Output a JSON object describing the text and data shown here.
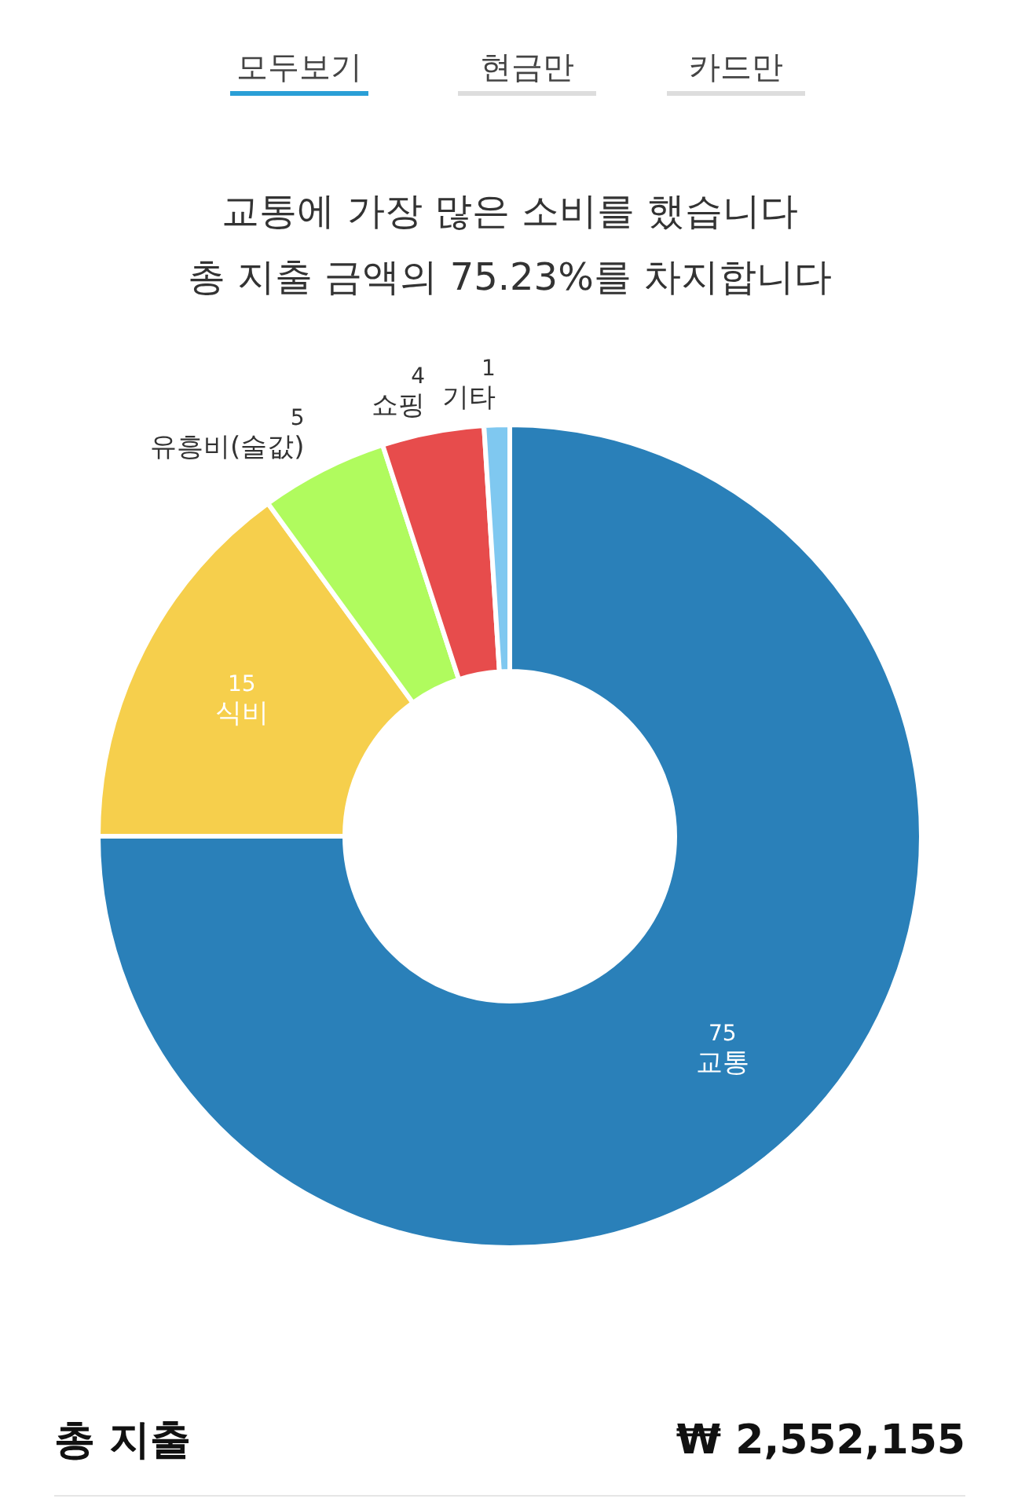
{
  "chart_data": {
    "type": "donut",
    "title": "교통에 가장 많은 소비를 했습니다",
    "subtitle": "총 지출 금액의 75.23%를 차지합니다",
    "categories": [
      "교통",
      "식비",
      "유흥비(술값)",
      "쇼핑",
      "기타"
    ],
    "values": [
      75,
      15,
      5,
      4,
      1
    ],
    "colors": [
      "#2a80b9",
      "#f6cf4c",
      "#b0fb5e",
      "#e74c4c",
      "#7fc8f0"
    ],
    "data_labels": true,
    "annotations": [
      "모두보기",
      "현금만",
      "카드만",
      "총 지출",
      "₩ 2,552,155"
    ]
  }
}
